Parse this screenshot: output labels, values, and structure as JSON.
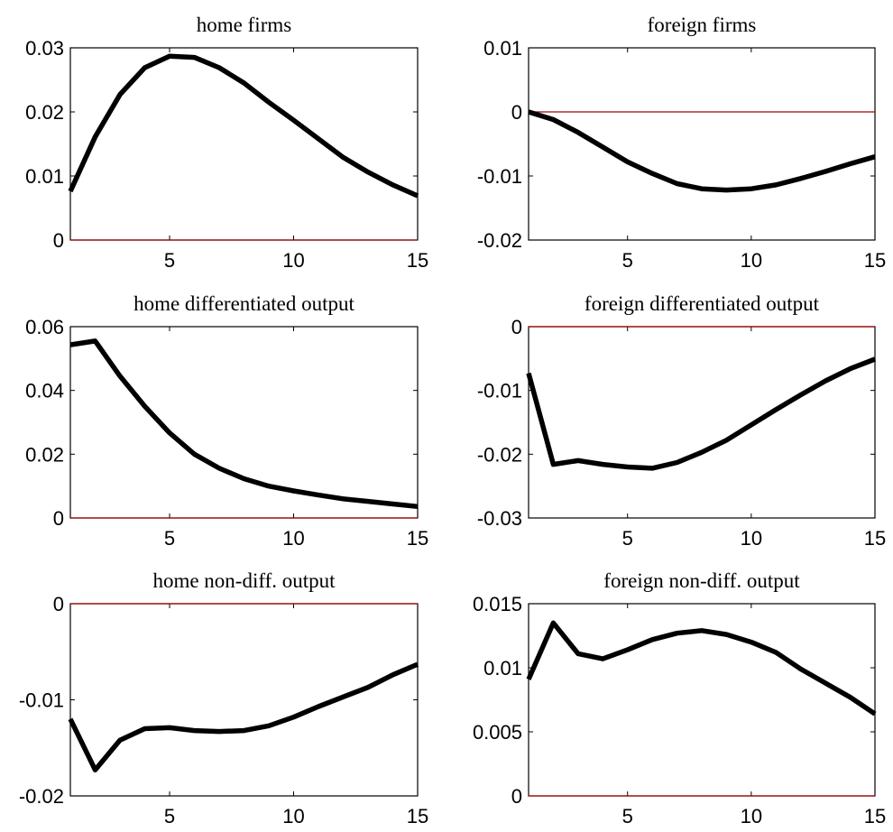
{
  "chart_data": [
    {
      "type": "line",
      "title": "home firms",
      "x": [
        1,
        2,
        3,
        4,
        5,
        6,
        7,
        8,
        9,
        10,
        11,
        12,
        13,
        14,
        15
      ],
      "xlim": [
        1,
        15
      ],
      "ylim": [
        0,
        0.03
      ],
      "xticks": [
        5,
        10,
        15
      ],
      "xtick_labels": [
        "5",
        "10",
        "15"
      ],
      "yticks": [
        0,
        0.01,
        0.02,
        0.03
      ],
      "ytick_labels": [
        "0",
        "0.01",
        "0.02",
        "0.03"
      ],
      "reference_line": 0,
      "series": [
        {
          "values": [
            0.0076,
            0.0161,
            0.0227,
            0.0269,
            0.0287,
            0.0285,
            0.0269,
            0.0245,
            0.0215,
            0.0187,
            0.0158,
            0.0129,
            0.0106,
            0.0086,
            0.0069
          ]
        }
      ]
    },
    {
      "type": "line",
      "title": "foreign firms",
      "x": [
        1,
        2,
        3,
        4,
        5,
        6,
        7,
        8,
        9,
        10,
        11,
        12,
        13,
        14,
        15
      ],
      "xlim": [
        1,
        15
      ],
      "ylim": [
        -0.02,
        0.01
      ],
      "xticks": [
        5,
        10,
        15
      ],
      "xtick_labels": [
        "5",
        "10",
        "15"
      ],
      "yticks": [
        -0.02,
        -0.01,
        0,
        0.01
      ],
      "ytick_labels": [
        "-0.02",
        "-0.01",
        "0",
        "0.01"
      ],
      "reference_line": 0,
      "series": [
        {
          "values": [
            0.0,
            -0.0012,
            -0.0032,
            -0.0055,
            -0.0078,
            -0.0096,
            -0.0112,
            -0.012,
            -0.0122,
            -0.012,
            -0.0114,
            -0.0104,
            -0.0093,
            -0.0081,
            -0.007
          ]
        }
      ]
    },
    {
      "type": "line",
      "title": "home differentiated output",
      "x": [
        1,
        2,
        3,
        4,
        5,
        6,
        7,
        8,
        9,
        10,
        11,
        12,
        13,
        14,
        15
      ],
      "xlim": [
        1,
        15
      ],
      "ylim": [
        0,
        0.06
      ],
      "xticks": [
        5,
        10,
        15
      ],
      "xtick_labels": [
        "5",
        "10",
        "15"
      ],
      "yticks": [
        0,
        0.02,
        0.04,
        0.06
      ],
      "ytick_labels": [
        "0",
        "0.02",
        "0.04",
        "0.06"
      ],
      "reference_line": 0,
      "series": [
        {
          "values": [
            0.0543,
            0.0555,
            0.0445,
            0.035,
            0.0267,
            0.02,
            0.0156,
            0.0123,
            0.01,
            0.0085,
            0.0072,
            0.006,
            0.0052,
            0.0044,
            0.0036
          ]
        }
      ]
    },
    {
      "type": "line",
      "title": "foreign differentiated output",
      "x": [
        1,
        2,
        3,
        4,
        5,
        6,
        7,
        8,
        9,
        10,
        11,
        12,
        13,
        14,
        15
      ],
      "xlim": [
        1,
        15
      ],
      "ylim": [
        -0.03,
        0
      ],
      "xticks": [
        5,
        10,
        15
      ],
      "xtick_labels": [
        "5",
        "10",
        "15"
      ],
      "yticks": [
        -0.03,
        -0.02,
        -0.01,
        0
      ],
      "ytick_labels": [
        "-0.03",
        "-0.02",
        "-0.01",
        "0"
      ],
      "reference_line": 0,
      "series": [
        {
          "values": [
            -0.0073,
            -0.0216,
            -0.021,
            -0.0216,
            -0.022,
            -0.0222,
            -0.0213,
            -0.0197,
            -0.0178,
            -0.0154,
            -0.013,
            -0.0107,
            -0.0085,
            -0.0066,
            -0.0051
          ]
        }
      ]
    },
    {
      "type": "line",
      "title": "home non-diff. output",
      "x": [
        1,
        2,
        3,
        4,
        5,
        6,
        7,
        8,
        9,
        10,
        11,
        12,
        13,
        14,
        15
      ],
      "xlim": [
        1,
        15
      ],
      "ylim": [
        -0.02,
        0
      ],
      "xticks": [
        5,
        10,
        15
      ],
      "xtick_labels": [
        "5",
        "10",
        "15"
      ],
      "yticks": [
        -0.02,
        -0.01,
        0
      ],
      "ytick_labels": [
        "-0.02",
        "-0.01",
        "0"
      ],
      "reference_line": 0,
      "series": [
        {
          "values": [
            -0.012,
            -0.0173,
            -0.0142,
            -0.013,
            -0.0129,
            -0.0132,
            -0.0133,
            -0.0132,
            -0.0127,
            -0.0118,
            -0.0107,
            -0.0097,
            -0.0087,
            -0.0074,
            -0.0063
          ]
        }
      ]
    },
    {
      "type": "line",
      "title": "foreign non-diff. output",
      "x": [
        1,
        2,
        3,
        4,
        5,
        6,
        7,
        8,
        9,
        10,
        11,
        12,
        13,
        14,
        15
      ],
      "xlim": [
        1,
        15
      ],
      "ylim": [
        0,
        0.015
      ],
      "xticks": [
        5,
        10,
        15
      ],
      "xtick_labels": [
        "5",
        "10",
        "15"
      ],
      "yticks": [
        0,
        0.005,
        0.01,
        0.015
      ],
      "ytick_labels": [
        "0",
        "0.005",
        "0.01",
        "0.015"
      ],
      "reference_line": 0,
      "series": [
        {
          "values": [
            0.0091,
            0.0135,
            0.0111,
            0.0107,
            0.0114,
            0.0122,
            0.0127,
            0.0129,
            0.0126,
            0.012,
            0.0112,
            0.0099,
            0.0088,
            0.0077,
            0.0064
          ]
        }
      ]
    }
  ]
}
